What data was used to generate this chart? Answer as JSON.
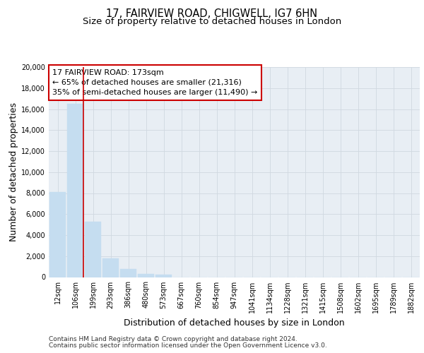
{
  "title": "17, FAIRVIEW ROAD, CHIGWELL, IG7 6HN",
  "subtitle": "Size of property relative to detached houses in London",
  "xlabel": "Distribution of detached houses by size in London",
  "ylabel": "Number of detached properties",
  "bar_labels": [
    "12sqm",
    "106sqm",
    "199sqm",
    "293sqm",
    "386sqm",
    "480sqm",
    "573sqm",
    "667sqm",
    "760sqm",
    "854sqm",
    "947sqm",
    "1041sqm",
    "1134sqm",
    "1228sqm",
    "1321sqm",
    "1415sqm",
    "1508sqm",
    "1602sqm",
    "1695sqm",
    "1789sqm",
    "1882sqm"
  ],
  "bar_values": [
    8100,
    16500,
    5300,
    1750,
    800,
    280,
    230,
    0,
    0,
    0,
    0,
    0,
    0,
    0,
    0,
    0,
    0,
    0,
    0,
    0,
    0
  ],
  "bar_color": "#c5ddf0",
  "bar_edge_color": "#c5ddf0",
  "property_line_color": "#cc0000",
  "annotation_line1": "17 FAIRVIEW ROAD: 173sqm",
  "annotation_line2": "← 65% of detached houses are smaller (21,316)",
  "annotation_line3": "35% of semi-detached houses are larger (11,490) →",
  "ylim": [
    0,
    20000
  ],
  "yticks": [
    0,
    2000,
    4000,
    6000,
    8000,
    10000,
    12000,
    14000,
    16000,
    18000,
    20000
  ],
  "grid_color": "#d0d8e0",
  "background_color": "#ffffff",
  "plot_bg_color": "#e8eef4",
  "footer_line1": "Contains HM Land Registry data © Crown copyright and database right 2024.",
  "footer_line2": "Contains public sector information licensed under the Open Government Licence v3.0.",
  "title_fontsize": 10.5,
  "subtitle_fontsize": 9.5,
  "axis_label_fontsize": 9,
  "tick_fontsize": 7,
  "annotation_fontsize": 8,
  "footer_fontsize": 6.5
}
